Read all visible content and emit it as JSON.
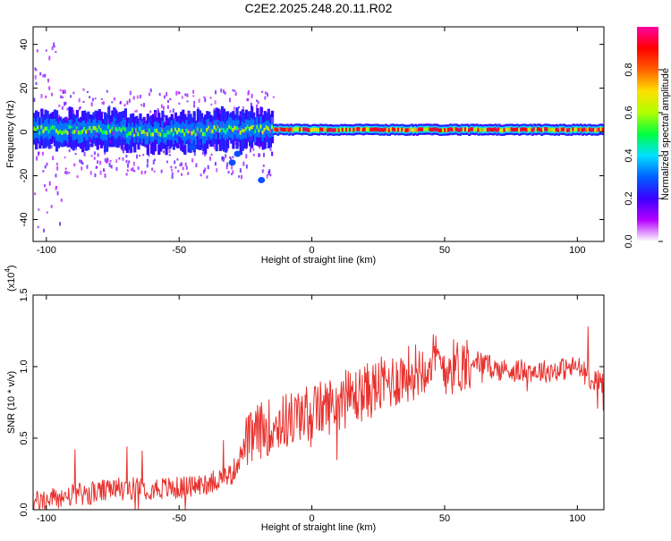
{
  "title": "C2E2.2025.248.20.11.R02",
  "chart_data": [
    {
      "type": "heatmap",
      "xlabel": "Height of straight line (km)",
      "ylabel": "Frequency (Hz)",
      "xlim": [
        -105,
        110
      ],
      "ylim": [
        -50,
        48
      ],
      "xticks": [
        -100,
        -50,
        0,
        50,
        100
      ],
      "yticks": [
        -40,
        -20,
        0,
        20,
        40
      ],
      "ridge_frequency": 1,
      "colorbar": {
        "label": "Normalized spectral amplitude",
        "range": [
          0,
          1
        ],
        "ticks": [
          "0.0",
          "0.2",
          "0.4",
          "0.6",
          "0.8"
        ],
        "colors": [
          "#ffffff",
          "#b400ff",
          "#3a00ff",
          "#0060ff",
          "#00e0ff",
          "#00ff40",
          "#b0ff00",
          "#ffe000",
          "#ff6000",
          "#ff0000",
          "#ff00a0"
        ]
      }
    },
    {
      "type": "line",
      "xlabel": "Height of straight line (km)",
      "ylabel": "SNR (10 * v/v)",
      "y_multiplier": "(x10",
      "y_multiplier_exp": "4",
      "y_multiplier_close": ")",
      "xlim": [
        -105,
        110
      ],
      "ylim": [
        0,
        1.5
      ],
      "xticks": [
        -100,
        -50,
        0,
        50,
        100
      ],
      "yticks": [
        "0.0",
        "0.5",
        "1.0",
        "1.5"
      ],
      "color": "#e8322e",
      "trend": {
        "x": [
          -105,
          -90,
          -70,
          -50,
          -40,
          -30,
          -25,
          -20,
          -10,
          0,
          10,
          20,
          30,
          40,
          45,
          50,
          55,
          60,
          70,
          80,
          90,
          100,
          105,
          110
        ],
        "y": [
          0.05,
          0.1,
          0.15,
          0.15,
          0.18,
          0.25,
          0.45,
          0.55,
          0.62,
          0.68,
          0.75,
          0.82,
          0.9,
          0.98,
          1.05,
          1.0,
          1.0,
          1.05,
          0.98,
          0.97,
          0.97,
          1.0,
          0.92,
          0.88
        ]
      }
    }
  ]
}
